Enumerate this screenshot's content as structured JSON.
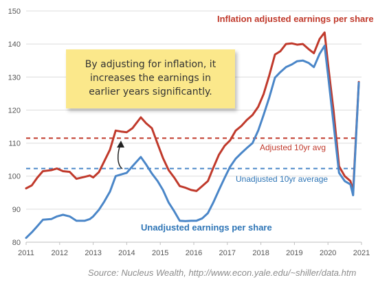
{
  "chart_data": {
    "type": "line",
    "title": "",
    "xlabel": "",
    "ylabel": "",
    "xlim": [
      2011,
      2021
    ],
    "ylim": [
      80,
      150
    ],
    "x_ticks": [
      "2011",
      "2012",
      "2013",
      "2014",
      "2015",
      "2016",
      "2017",
      "2018",
      "2019",
      "2020",
      "2021"
    ],
    "y_ticks": [
      "80",
      "90",
      "100",
      "110",
      "120",
      "130",
      "140",
      "150"
    ],
    "grid": "horizontal",
    "series": [
      {
        "name": "Inflation adjusted earnings per share",
        "color": "#c0392b",
        "x": [
          2011.0,
          2011.17,
          2011.33,
          2011.5,
          2011.75,
          2011.92,
          2012.1,
          2012.3,
          2012.5,
          2012.75,
          2012.9,
          2013.0,
          2013.17,
          2013.33,
          2013.5,
          2013.67,
          2013.83,
          2014.0,
          2014.17,
          2014.42,
          2014.58,
          2014.75,
          2014.92,
          2015.08,
          2015.25,
          2015.42,
          2015.58,
          2015.75,
          2015.92,
          2016.08,
          2016.25,
          2016.42,
          2016.58,
          2016.75,
          2016.92,
          2017.08,
          2017.25,
          2017.42,
          2017.58,
          2017.75,
          2017.92,
          2018.08,
          2018.25,
          2018.42,
          2018.58,
          2018.75,
          2018.92,
          2019.08,
          2019.25,
          2019.42,
          2019.58,
          2019.75,
          2019.9,
          2020.0,
          2020.17,
          2020.33,
          2020.5,
          2020.67,
          2020.75,
          2020.92
        ],
        "y": [
          96.3,
          97.2,
          99.5,
          101.5,
          101.8,
          102.3,
          101.5,
          101.3,
          99.2,
          99.8,
          100.2,
          99.6,
          101.2,
          104.5,
          108.0,
          113.8,
          113.5,
          113.3,
          114.5,
          117.8,
          116.0,
          114.5,
          109.8,
          105.5,
          101.8,
          99.5,
          97.0,
          96.5,
          95.8,
          95.5,
          97.0,
          98.5,
          102.5,
          106.5,
          109.2,
          110.8,
          113.8,
          115.2,
          117.0,
          118.5,
          121.0,
          124.8,
          130.5,
          136.8,
          137.8,
          140.0,
          140.2,
          139.8,
          140.0,
          138.5,
          137.2,
          141.5,
          143.5,
          134.0,
          119.5,
          103.0,
          100.0,
          98.5,
          95.5,
          128.5
        ]
      },
      {
        "name": "Unadjusted earnings per share",
        "color": "#4a86c8",
        "x": [
          2011.0,
          2011.17,
          2011.33,
          2011.5,
          2011.75,
          2011.92,
          2012.1,
          2012.3,
          2012.5,
          2012.75,
          2012.9,
          2013.0,
          2013.17,
          2013.33,
          2013.5,
          2013.67,
          2013.83,
          2014.0,
          2014.17,
          2014.42,
          2014.58,
          2014.75,
          2014.92,
          2015.08,
          2015.25,
          2015.42,
          2015.58,
          2015.75,
          2015.92,
          2016.08,
          2016.25,
          2016.42,
          2016.58,
          2016.75,
          2016.92,
          2017.08,
          2017.25,
          2017.42,
          2017.58,
          2017.75,
          2017.92,
          2018.08,
          2018.25,
          2018.42,
          2018.58,
          2018.75,
          2018.92,
          2019.08,
          2019.25,
          2019.42,
          2019.58,
          2019.75,
          2019.9,
          2020.0,
          2020.17,
          2020.33,
          2020.5,
          2020.67,
          2020.75,
          2020.92
        ],
        "y": [
          81.3,
          83.0,
          84.8,
          86.8,
          87.0,
          87.8,
          88.3,
          87.8,
          86.5,
          86.5,
          87.0,
          87.8,
          89.8,
          92.3,
          95.3,
          100.0,
          100.5,
          101.0,
          103.0,
          105.8,
          103.5,
          100.8,
          98.5,
          95.8,
          92.0,
          89.3,
          86.5,
          86.4,
          86.5,
          86.5,
          87.2,
          88.8,
          92.0,
          95.8,
          99.5,
          102.8,
          105.3,
          107.0,
          108.5,
          110.0,
          113.8,
          118.5,
          123.8,
          129.8,
          131.5,
          133.0,
          133.8,
          134.8,
          135.0,
          134.3,
          133.0,
          137.0,
          139.5,
          130.8,
          115.5,
          101.0,
          98.5,
          97.5,
          94.2,
          128.3
        ]
      }
    ],
    "reference_lines": [
      {
        "label": "Adjusted 10yr avg",
        "y": 111.5,
        "color": "#c0392b",
        "style": "dashed"
      },
      {
        "label": "Unadjusted 10yr average",
        "y": 102.3,
        "color": "#4a86c8",
        "style": "dashed"
      }
    ],
    "annotations": [
      {
        "text_lines": [
          "By adjusting for inflation, it",
          "increases the earnings in",
          "earlier years significantly."
        ],
        "arrow_target": [
          2013.83,
          112
        ]
      }
    ],
    "source": "Source:  Nucleus Wealth, http://www.econ.yale.edu/~shiller/data.htm"
  }
}
